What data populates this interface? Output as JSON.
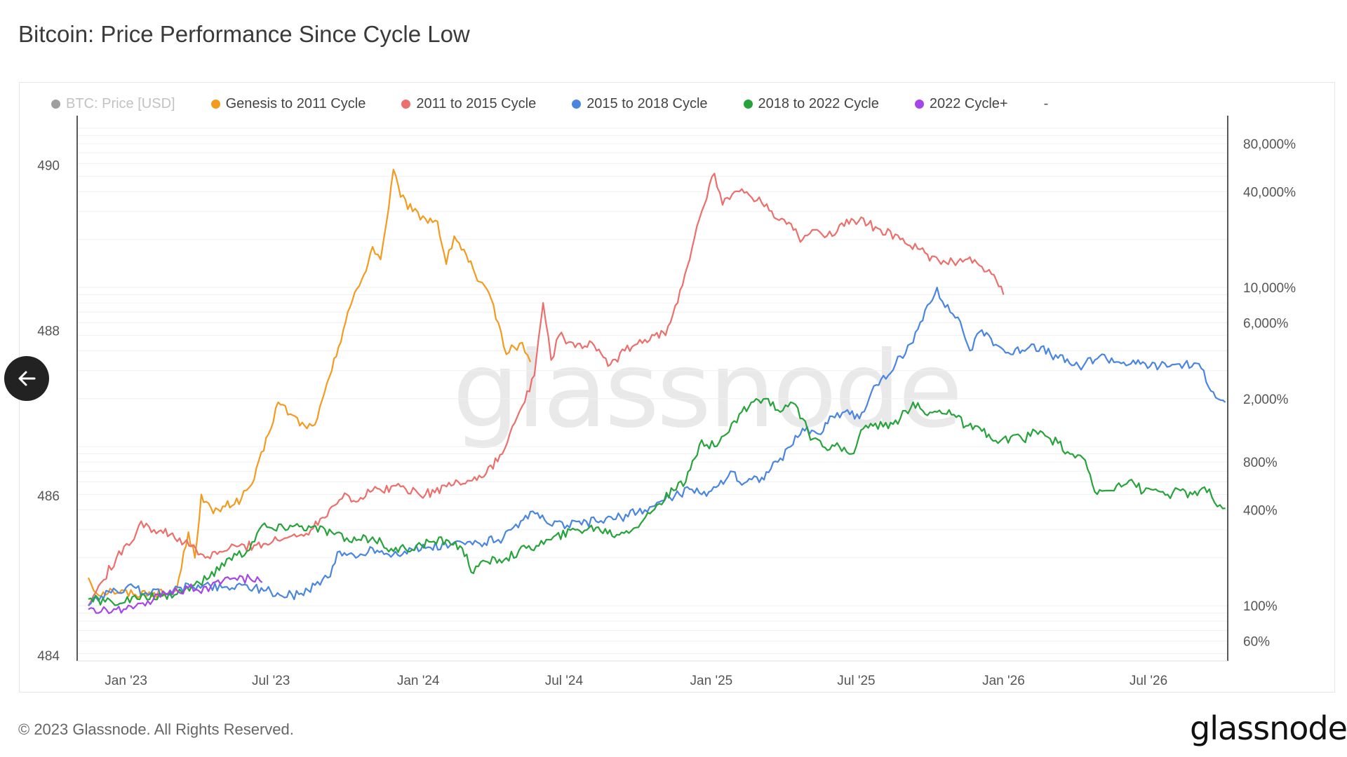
{
  "header": {
    "title": "Bitcoin: Price Performance Since Cycle Low"
  },
  "legend": [
    {
      "label": "BTC: Price [USD]",
      "color": "#9e9e9e",
      "muted": true
    },
    {
      "label": "Genesis to 2011 Cycle",
      "color": "#f39b1f"
    },
    {
      "label": "2011 to 2015 Cycle",
      "color": "#eb6f6c"
    },
    {
      "label": "2015 to 2018 Cycle",
      "color": "#4a86e0"
    },
    {
      "label": "2018 to 2022 Cycle",
      "color": "#27a33b"
    },
    {
      "label": "2022 Cycle+",
      "color": "#a646e8"
    }
  ],
  "legend_extra": "-",
  "watermark": "glassnode",
  "footer": {
    "copyright": "© 2023 Glassnode. All Rights Reserved.",
    "logo": "glassnode"
  },
  "chart_data": {
    "type": "line",
    "x_ticks": [
      "Jan '23",
      "Jul '23",
      "Jan '24",
      "Jul '24",
      "Jan '25",
      "Jul '25",
      "Jan '26",
      "Jul '26"
    ],
    "y_left_ticks": [
      "490",
      "488",
      "486",
      "484"
    ],
    "y_right_ticks": [
      "80,000%",
      "40,000%",
      "10,000%",
      "6,000%",
      "2,000%",
      "800%",
      "400%",
      "100%",
      "60%"
    ],
    "y_scale": "log",
    "series": [
      {
        "name": "Genesis to 2011 Cycle",
        "color": "#f39b1f",
        "points": [
          [
            "2022-11-15",
            150
          ],
          [
            "2022-11-25",
            120
          ],
          [
            "2022-12-15",
            125
          ],
          [
            "2023-01-10",
            118
          ],
          [
            "2023-01-30",
            122
          ],
          [
            "2023-02-20",
            118
          ],
          [
            "2023-03-05",
            125
          ],
          [
            "2023-03-20",
            290
          ],
          [
            "2023-03-28",
            200
          ],
          [
            "2023-04-05",
            500
          ],
          [
            "2023-04-20",
            380
          ],
          [
            "2023-05-05",
            420
          ],
          [
            "2023-05-25",
            470
          ],
          [
            "2023-06-10",
            620
          ],
          [
            "2023-06-28",
            1200
          ],
          [
            "2023-07-10",
            1900
          ],
          [
            "2023-07-25",
            1600
          ],
          [
            "2023-08-15",
            1300
          ],
          [
            "2023-08-28",
            1500
          ],
          [
            "2023-09-15",
            3000
          ],
          [
            "2023-10-05",
            7000
          ],
          [
            "2023-10-25",
            12000
          ],
          [
            "2023-11-05",
            18000
          ],
          [
            "2023-11-15",
            15000
          ],
          [
            "2023-11-22",
            25000
          ],
          [
            "2023-12-01",
            55000
          ],
          [
            "2023-12-10",
            37000
          ],
          [
            "2023-12-25",
            30000
          ],
          [
            "2024-01-10",
            27000
          ],
          [
            "2024-01-25",
            26000
          ],
          [
            "2024-02-05",
            14000
          ],
          [
            "2024-02-15",
            21000
          ],
          [
            "2024-03-01",
            16000
          ],
          [
            "2024-03-15",
            11000
          ],
          [
            "2024-04-01",
            8500
          ],
          [
            "2024-04-10",
            6000
          ],
          [
            "2024-04-20",
            3800
          ],
          [
            "2024-04-30",
            4200
          ],
          [
            "2024-05-10",
            4500
          ],
          [
            "2024-05-20",
            3400
          ]
        ]
      },
      {
        "name": "2011 to 2015 Cycle",
        "color": "#eb6f6c",
        "points": [
          [
            "2022-11-15",
            100
          ],
          [
            "2022-12-01",
            140
          ],
          [
            "2022-12-20",
            200
          ],
          [
            "2023-01-05",
            240
          ],
          [
            "2023-01-20",
            340
          ],
          [
            "2023-02-05",
            300
          ],
          [
            "2023-02-25",
            280
          ],
          [
            "2023-03-15",
            250
          ],
          [
            "2023-04-10",
            200
          ],
          [
            "2023-05-10",
            230
          ],
          [
            "2023-06-10",
            240
          ],
          [
            "2023-07-15",
            260
          ],
          [
            "2023-08-20",
            300
          ],
          [
            "2023-09-15",
            420
          ],
          [
            "2023-10-01",
            510
          ],
          [
            "2023-10-15",
            450
          ],
          [
            "2023-11-05",
            530
          ],
          [
            "2023-12-10",
            560
          ],
          [
            "2024-01-10",
            500
          ],
          [
            "2024-02-20",
            600
          ],
          [
            "2024-03-20",
            640
          ],
          [
            "2024-04-15",
            900
          ],
          [
            "2024-05-10",
            1800
          ],
          [
            "2024-05-25",
            2800
          ],
          [
            "2024-06-05",
            8000
          ],
          [
            "2024-06-15",
            3500
          ],
          [
            "2024-06-25",
            5000
          ],
          [
            "2024-07-15",
            4200
          ],
          [
            "2024-08-05",
            4500
          ],
          [
            "2024-08-25",
            3200
          ],
          [
            "2024-09-15",
            4000
          ],
          [
            "2024-10-10",
            4700
          ],
          [
            "2024-10-25",
            5200
          ],
          [
            "2024-11-05",
            5000
          ],
          [
            "2024-11-20",
            8000
          ],
          [
            "2024-12-05",
            15000
          ],
          [
            "2024-12-20",
            30000
          ],
          [
            "2025-01-05",
            52000
          ],
          [
            "2025-01-15",
            33000
          ],
          [
            "2025-02-05",
            40000
          ],
          [
            "2025-03-05",
            34000
          ],
          [
            "2025-04-05",
            25000
          ],
          [
            "2025-04-25",
            20000
          ],
          [
            "2025-05-10",
            23000
          ],
          [
            "2025-06-01",
            21000
          ],
          [
            "2025-06-25",
            27000
          ],
          [
            "2025-07-25",
            24000
          ],
          [
            "2025-08-25",
            20000
          ],
          [
            "2025-09-25",
            16500
          ],
          [
            "2025-10-15",
            14000
          ],
          [
            "2025-11-05",
            14500
          ],
          [
            "2025-11-20",
            15500
          ],
          [
            "2025-12-05",
            13500
          ],
          [
            "2025-12-20",
            12000
          ],
          [
            "2026-01-01",
            9000
          ]
        ]
      },
      {
        "name": "2015 to 2018 Cycle",
        "color": "#4a86e0",
        "points": [
          [
            "2022-11-15",
            100
          ],
          [
            "2022-12-01",
            115
          ],
          [
            "2023-01-01",
            130
          ],
          [
            "2023-02-01",
            120
          ],
          [
            "2023-03-01",
            125
          ],
          [
            "2023-04-01",
            135
          ],
          [
            "2023-05-01",
            130
          ],
          [
            "2023-06-01",
            135
          ],
          [
            "2023-06-25",
            125
          ],
          [
            "2023-07-15",
            115
          ],
          [
            "2023-08-05",
            118
          ],
          [
            "2023-08-25",
            135
          ],
          [
            "2023-09-10",
            150
          ],
          [
            "2023-09-25",
            220
          ],
          [
            "2023-10-15",
            200
          ],
          [
            "2023-11-05",
            230
          ],
          [
            "2023-11-25",
            210
          ],
          [
            "2023-12-15",
            220
          ],
          [
            "2024-01-10",
            230
          ],
          [
            "2024-02-10",
            240
          ],
          [
            "2024-03-15",
            250
          ],
          [
            "2024-04-10",
            260
          ],
          [
            "2024-05-05",
            310
          ],
          [
            "2024-05-20",
            390
          ],
          [
            "2024-06-10",
            330
          ],
          [
            "2024-07-05",
            320
          ],
          [
            "2024-08-10",
            340
          ],
          [
            "2024-09-10",
            360
          ],
          [
            "2024-10-10",
            400
          ],
          [
            "2024-11-10",
            480
          ],
          [
            "2024-12-05",
            540
          ],
          [
            "2024-12-20",
            500
          ],
          [
            "2025-01-10",
            570
          ],
          [
            "2025-01-25",
            700
          ],
          [
            "2025-02-05",
            600
          ],
          [
            "2025-03-05",
            640
          ],
          [
            "2025-03-25",
            800
          ],
          [
            "2025-04-10",
            1000
          ],
          [
            "2025-04-25",
            1300
          ],
          [
            "2025-05-15",
            1200
          ],
          [
            "2025-06-01",
            1550
          ],
          [
            "2025-06-20",
            1700
          ],
          [
            "2025-07-05",
            1500
          ],
          [
            "2025-07-20",
            2200
          ],
          [
            "2025-08-10",
            2800
          ],
          [
            "2025-08-25",
            3700
          ],
          [
            "2025-09-10",
            4500
          ],
          [
            "2025-09-25",
            7200
          ],
          [
            "2025-10-10",
            10000
          ],
          [
            "2025-10-20",
            7500
          ],
          [
            "2025-11-05",
            6500
          ],
          [
            "2025-11-20",
            4000
          ],
          [
            "2025-12-05",
            5400
          ],
          [
            "2025-12-25",
            4300
          ],
          [
            "2026-01-10",
            3800
          ],
          [
            "2026-02-05",
            4400
          ],
          [
            "2026-03-10",
            3600
          ],
          [
            "2026-04-05",
            3200
          ],
          [
            "2026-05-01",
            3700
          ],
          [
            "2026-05-25",
            3400
          ],
          [
            "2026-06-15",
            3300
          ],
          [
            "2026-07-15",
            3200
          ],
          [
            "2026-08-15",
            3300
          ],
          [
            "2026-09-05",
            3100
          ],
          [
            "2026-09-20",
            2200
          ],
          [
            "2026-10-05",
            1900
          ]
        ]
      },
      {
        "name": "2018 to 2022 Cycle",
        "color": "#27a33b",
        "points": [
          [
            "2022-11-15",
            110
          ],
          [
            "2022-12-15",
            105
          ],
          [
            "2023-01-15",
            110
          ],
          [
            "2023-02-15",
            115
          ],
          [
            "2023-03-15",
            125
          ],
          [
            "2023-04-15",
            150
          ],
          [
            "2023-05-10",
            200
          ],
          [
            "2023-06-01",
            220
          ],
          [
            "2023-06-20",
            320
          ],
          [
            "2023-07-05",
            300
          ],
          [
            "2023-07-25",
            320
          ],
          [
            "2023-08-20",
            310
          ],
          [
            "2023-09-15",
            290
          ],
          [
            "2023-10-10",
            250
          ],
          [
            "2023-11-05",
            270
          ],
          [
            "2023-12-01",
            220
          ],
          [
            "2024-01-05",
            240
          ],
          [
            "2024-02-05",
            260
          ],
          [
            "2024-02-25",
            230
          ],
          [
            "2024-03-10",
            160
          ],
          [
            "2024-03-25",
            190
          ],
          [
            "2024-04-20",
            200
          ],
          [
            "2024-05-15",
            230
          ],
          [
            "2024-06-15",
            260
          ],
          [
            "2024-07-15",
            300
          ],
          [
            "2024-08-10",
            310
          ],
          [
            "2024-09-05",
            280
          ],
          [
            "2024-10-05",
            330
          ],
          [
            "2024-10-25",
            430
          ],
          [
            "2024-11-15",
            530
          ],
          [
            "2024-11-30",
            600
          ],
          [
            "2024-12-20",
            1100
          ],
          [
            "2025-01-05",
            1000
          ],
          [
            "2025-01-20",
            1200
          ],
          [
            "2025-02-05",
            1600
          ],
          [
            "2025-02-20",
            1900
          ],
          [
            "2025-03-10",
            2000
          ],
          [
            "2025-03-25",
            1700
          ],
          [
            "2025-04-10",
            1900
          ],
          [
            "2025-04-25",
            1500
          ],
          [
            "2025-05-05",
            1100
          ],
          [
            "2025-05-20",
            1000
          ],
          [
            "2025-06-10",
            1000
          ],
          [
            "2025-06-25",
            900
          ],
          [
            "2025-07-10",
            1300
          ],
          [
            "2025-07-25",
            1400
          ],
          [
            "2025-08-10",
            1300
          ],
          [
            "2025-08-25",
            1500
          ],
          [
            "2025-09-10",
            1900
          ],
          [
            "2025-09-25",
            1600
          ],
          [
            "2025-10-10",
            1650
          ],
          [
            "2025-10-25",
            1700
          ],
          [
            "2025-11-15",
            1350
          ],
          [
            "2025-12-05",
            1250
          ],
          [
            "2025-12-25",
            1050
          ],
          [
            "2026-01-10",
            1150
          ],
          [
            "2026-01-25",
            1100
          ],
          [
            "2026-02-10",
            1250
          ],
          [
            "2026-02-25",
            1150
          ],
          [
            "2026-03-10",
            1050
          ],
          [
            "2026-03-25",
            900
          ],
          [
            "2026-04-10",
            850
          ],
          [
            "2026-04-25",
            520
          ],
          [
            "2026-05-10",
            530
          ],
          [
            "2026-05-25",
            590
          ],
          [
            "2026-06-10",
            620
          ],
          [
            "2026-06-25",
            520
          ],
          [
            "2026-07-10",
            540
          ],
          [
            "2026-07-25",
            500
          ],
          [
            "2026-08-10",
            530
          ],
          [
            "2026-08-25",
            500
          ],
          [
            "2026-09-15",
            540
          ],
          [
            "2026-09-25",
            420
          ],
          [
            "2026-10-05",
            410
          ]
        ]
      },
      {
        "name": "2022 Cycle+",
        "color": "#a646e8",
        "points": [
          [
            "2022-11-15",
            95
          ],
          [
            "2022-12-01",
            92
          ],
          [
            "2022-12-20",
            95
          ],
          [
            "2023-01-10",
            96
          ],
          [
            "2023-01-25",
            100
          ],
          [
            "2023-02-10",
            118
          ],
          [
            "2023-02-25",
            125
          ],
          [
            "2023-03-10",
            120
          ],
          [
            "2023-03-20",
            130
          ],
          [
            "2023-04-05",
            120
          ],
          [
            "2023-04-20",
            140
          ],
          [
            "2023-05-05",
            150
          ],
          [
            "2023-05-20",
            145
          ],
          [
            "2023-06-05",
            148
          ],
          [
            "2023-06-20",
            140
          ]
        ]
      }
    ]
  }
}
